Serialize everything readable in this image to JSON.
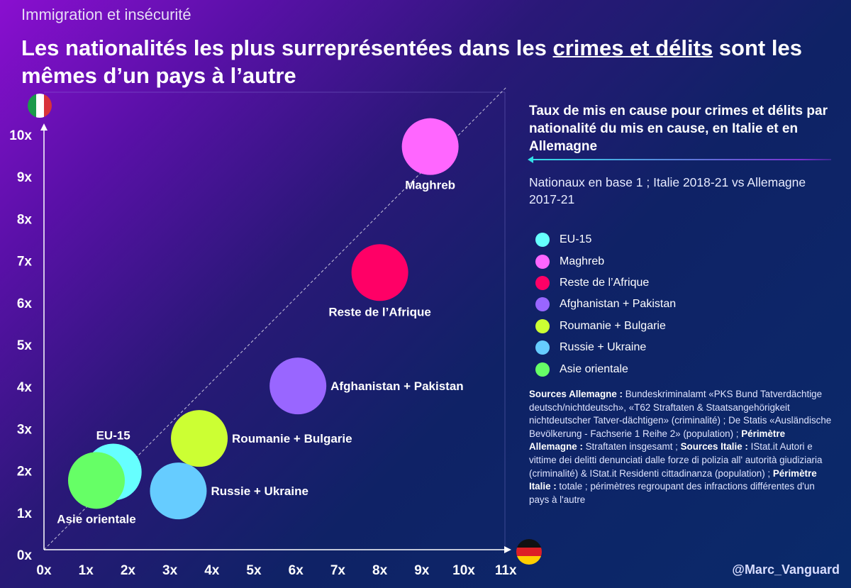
{
  "header": {
    "kicker": "Immigration et insécurité",
    "title_part1": "Les nationalités les plus surreprésentées dans les ",
    "title_underlined": "crimes et délits",
    "title_part2": " sont les mêmes d’un pays à l’autre"
  },
  "panel": {
    "title": "Taux de mis en cause pour crimes et délits par nationalité du mis en cause, en Italie et en Allemagne",
    "subtitle": "Nationaux en base 1 ; Italie 2018-21 vs Allemagne 2017-21"
  },
  "sources": [
    {
      "b": "Sources Allemagne :",
      "t": " Bundeskriminalamt «PKS Bund Tatverdächtige deutsch/nichtdeutsch», «T62 Straftaten & Staatsangehörigkeit nichtdeutscher Tatver-dächtigen» (criminalité) ; De Statis «Ausländische Bevölkerung - Fachserie 1 Reihe 2» (population) ; "
    },
    {
      "b": "Périmètre Allemagne :",
      "t": " Straftaten insgesamt ; "
    },
    {
      "b": "Sources Italie :",
      "t": " IStat.it Autori e vittime dei delitti denunciati dalle forze di polizia all' autorità giudiziaria (criminalité) & IStat.it Residenti cittadinanza (population) ; "
    },
    {
      "b": "Périmètre Italie :",
      "t": " totale ; périmètres regroupant des infractions différentes d'un pays à l'autre"
    }
  ],
  "credit": "@Marc_Vanguard",
  "chart_data": {
    "type": "scatter",
    "subtype": "bubble",
    "xlabel": "Allemagne (flag-germany)",
    "ylabel": "Italie (flag-italy)",
    "xlim": [
      0,
      11
    ],
    "ylim": [
      0,
      10
    ],
    "x_ticks": [
      "0x",
      "1x",
      "2x",
      "3x",
      "4x",
      "5x",
      "6x",
      "7x",
      "8x",
      "9x",
      "10x",
      "11x"
    ],
    "y_ticks": [
      "0x",
      "1x",
      "2x",
      "3x",
      "4x",
      "5x",
      "6x",
      "7x",
      "8x",
      "9x",
      "10x"
    ],
    "reference_line": "y = x (dashed)",
    "legend_placement": "right",
    "series": [
      {
        "name": "EU-15",
        "x": 1.65,
        "y": 1.85,
        "color": "#66ffff"
      },
      {
        "name": "Maghreb",
        "x": 9.2,
        "y": 9.6,
        "color": "#ff66ff"
      },
      {
        "name": "Reste de l’Afrique",
        "x": 8.0,
        "y": 6.6,
        "color": "#ff0066"
      },
      {
        "name": "Afghanistan + Pakistan",
        "x": 6.05,
        "y": 3.9,
        "color": "#9966ff"
      },
      {
        "name": "Roumanie + Bulgarie",
        "x": 3.7,
        "y": 2.65,
        "color": "#ccff33"
      },
      {
        "name": "Russie + Ukraine",
        "x": 3.2,
        "y": 1.4,
        "color": "#66ccff"
      },
      {
        "name": "Asie orientale",
        "x": 1.25,
        "y": 1.65,
        "color": "#66ff66"
      }
    ]
  }
}
